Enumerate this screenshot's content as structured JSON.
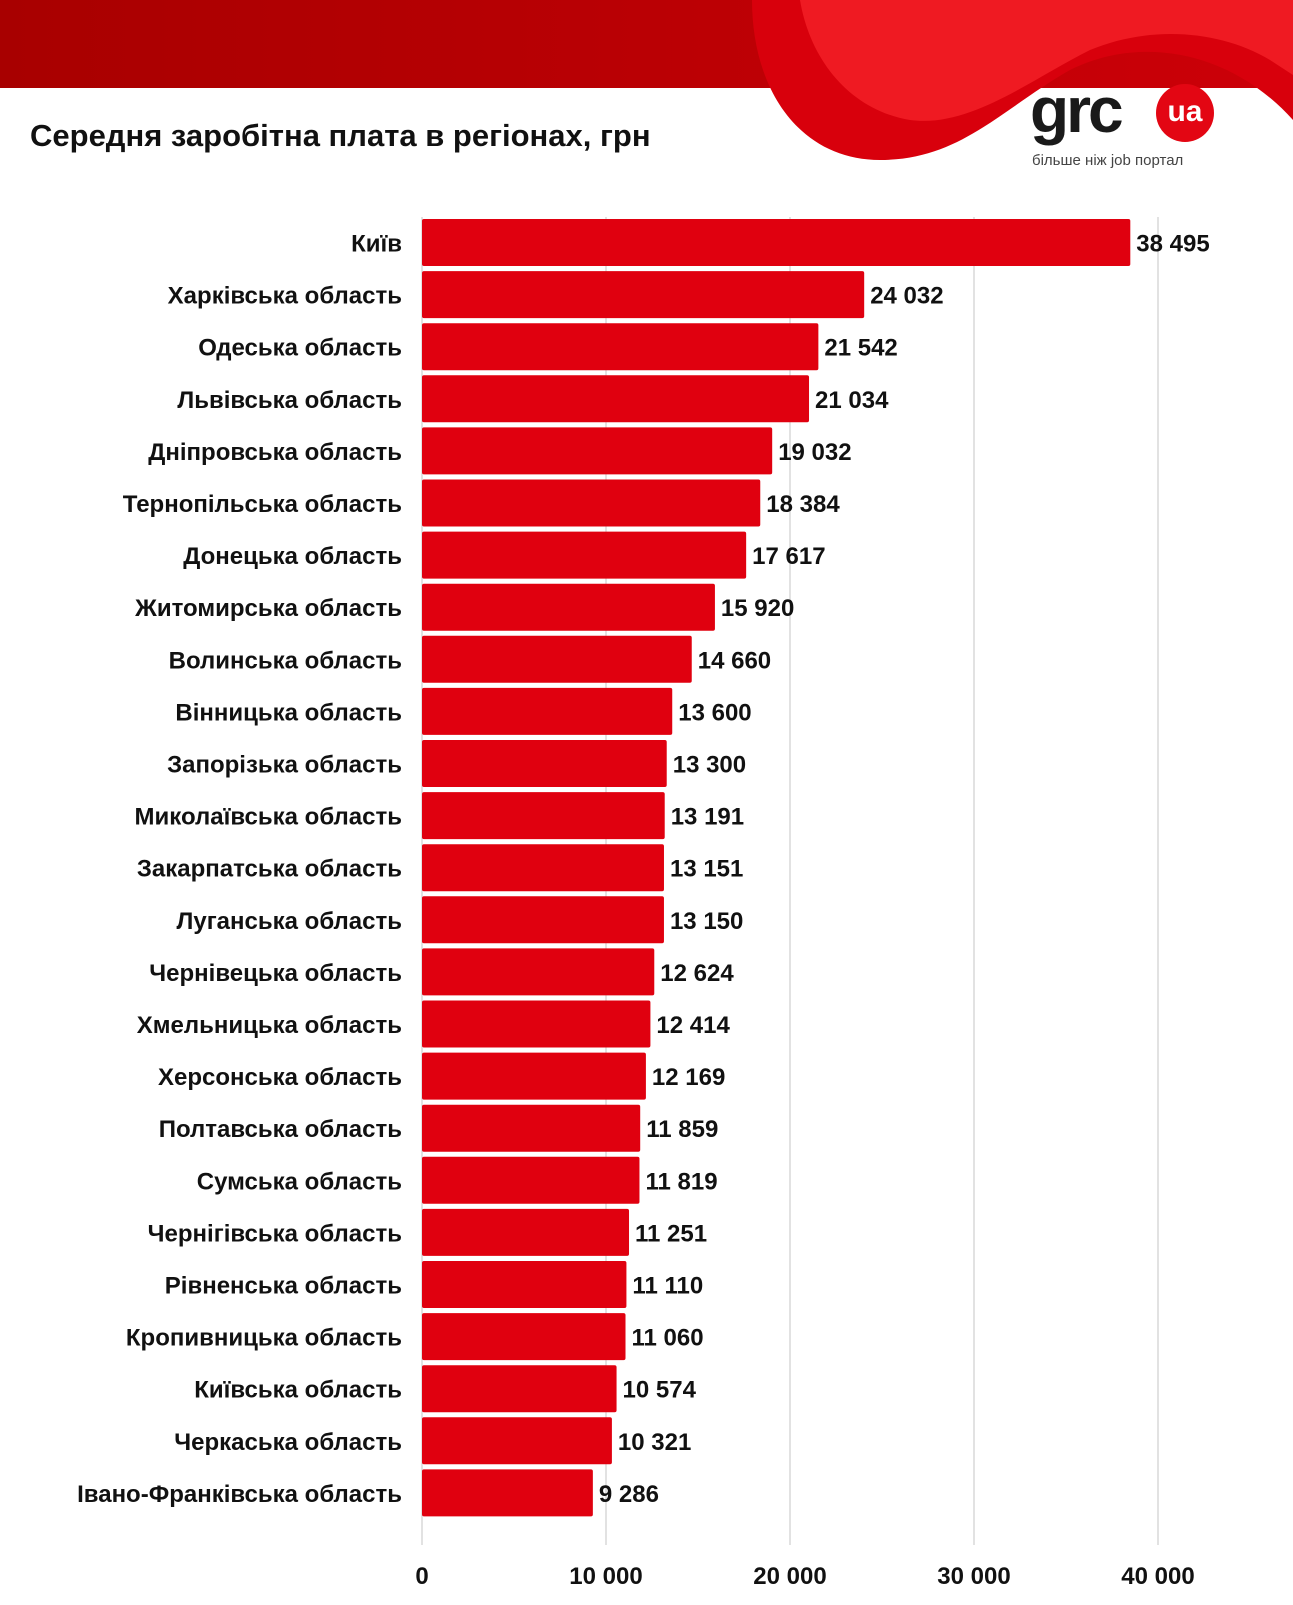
{
  "header": {
    "title": "Середня заробітна плата в регіонах, грн"
  },
  "logo": {
    "text": "grc",
    "badge": "ua",
    "tagline": "більше ніж job портал"
  },
  "colors": {
    "bar": "#e0000f",
    "banner_dark": "#a80000",
    "banner_mid": "#cc0008",
    "banner_light": "#ef1a22",
    "grid": "#d9d9d9"
  },
  "chart_data": {
    "type": "bar",
    "orientation": "horizontal",
    "categories": [
      "Київ",
      "Харківська область",
      "Одеська область",
      "Львівська область",
      "Дніпровська область",
      "Тернопільська область",
      "Донецька область",
      "Житомирська область",
      "Волинська область",
      "Вінницька область",
      "Запорізька область",
      "Миколаївська область",
      "Закарпатська область",
      "Луганська область",
      "Чернівецька область",
      "Хмельницька область",
      "Херсонська область",
      "Полтавська область",
      "Сумська область",
      "Чернігівська область",
      "Рівненська область",
      "Кропивницька область",
      "Київська область",
      "Черкаська область",
      "Івано-Франківська область"
    ],
    "values": [
      38495,
      24032,
      21542,
      21034,
      19032,
      18384,
      17617,
      15920,
      14660,
      13600,
      13300,
      13191,
      13151,
      13150,
      12624,
      12414,
      12169,
      11859,
      11819,
      11251,
      11110,
      11060,
      10574,
      10321,
      9286
    ],
    "value_labels": [
      "38 495",
      "24 032",
      "21 542",
      "21 034",
      "19 032",
      "18 384",
      "17 617",
      "15 920",
      "14 660",
      "13 600",
      "13 300",
      "13 191",
      "13 151",
      "13 150",
      "12 624",
      "12 414",
      "12 169",
      "11 859",
      "11 819",
      "11 251",
      "11 110",
      "11 060",
      "10 574",
      "10 321",
      "9 286"
    ],
    "xlim": [
      0,
      40000
    ],
    "x_ticks": [
      0,
      10000,
      20000,
      30000,
      40000
    ],
    "x_tick_labels": [
      "0",
      "10 000",
      "20 000",
      "30 000",
      "40 000"
    ],
    "grid": "vertical",
    "title": "Середня заробітна плата в регіонах, грн",
    "xlabel": "",
    "ylabel": ""
  }
}
